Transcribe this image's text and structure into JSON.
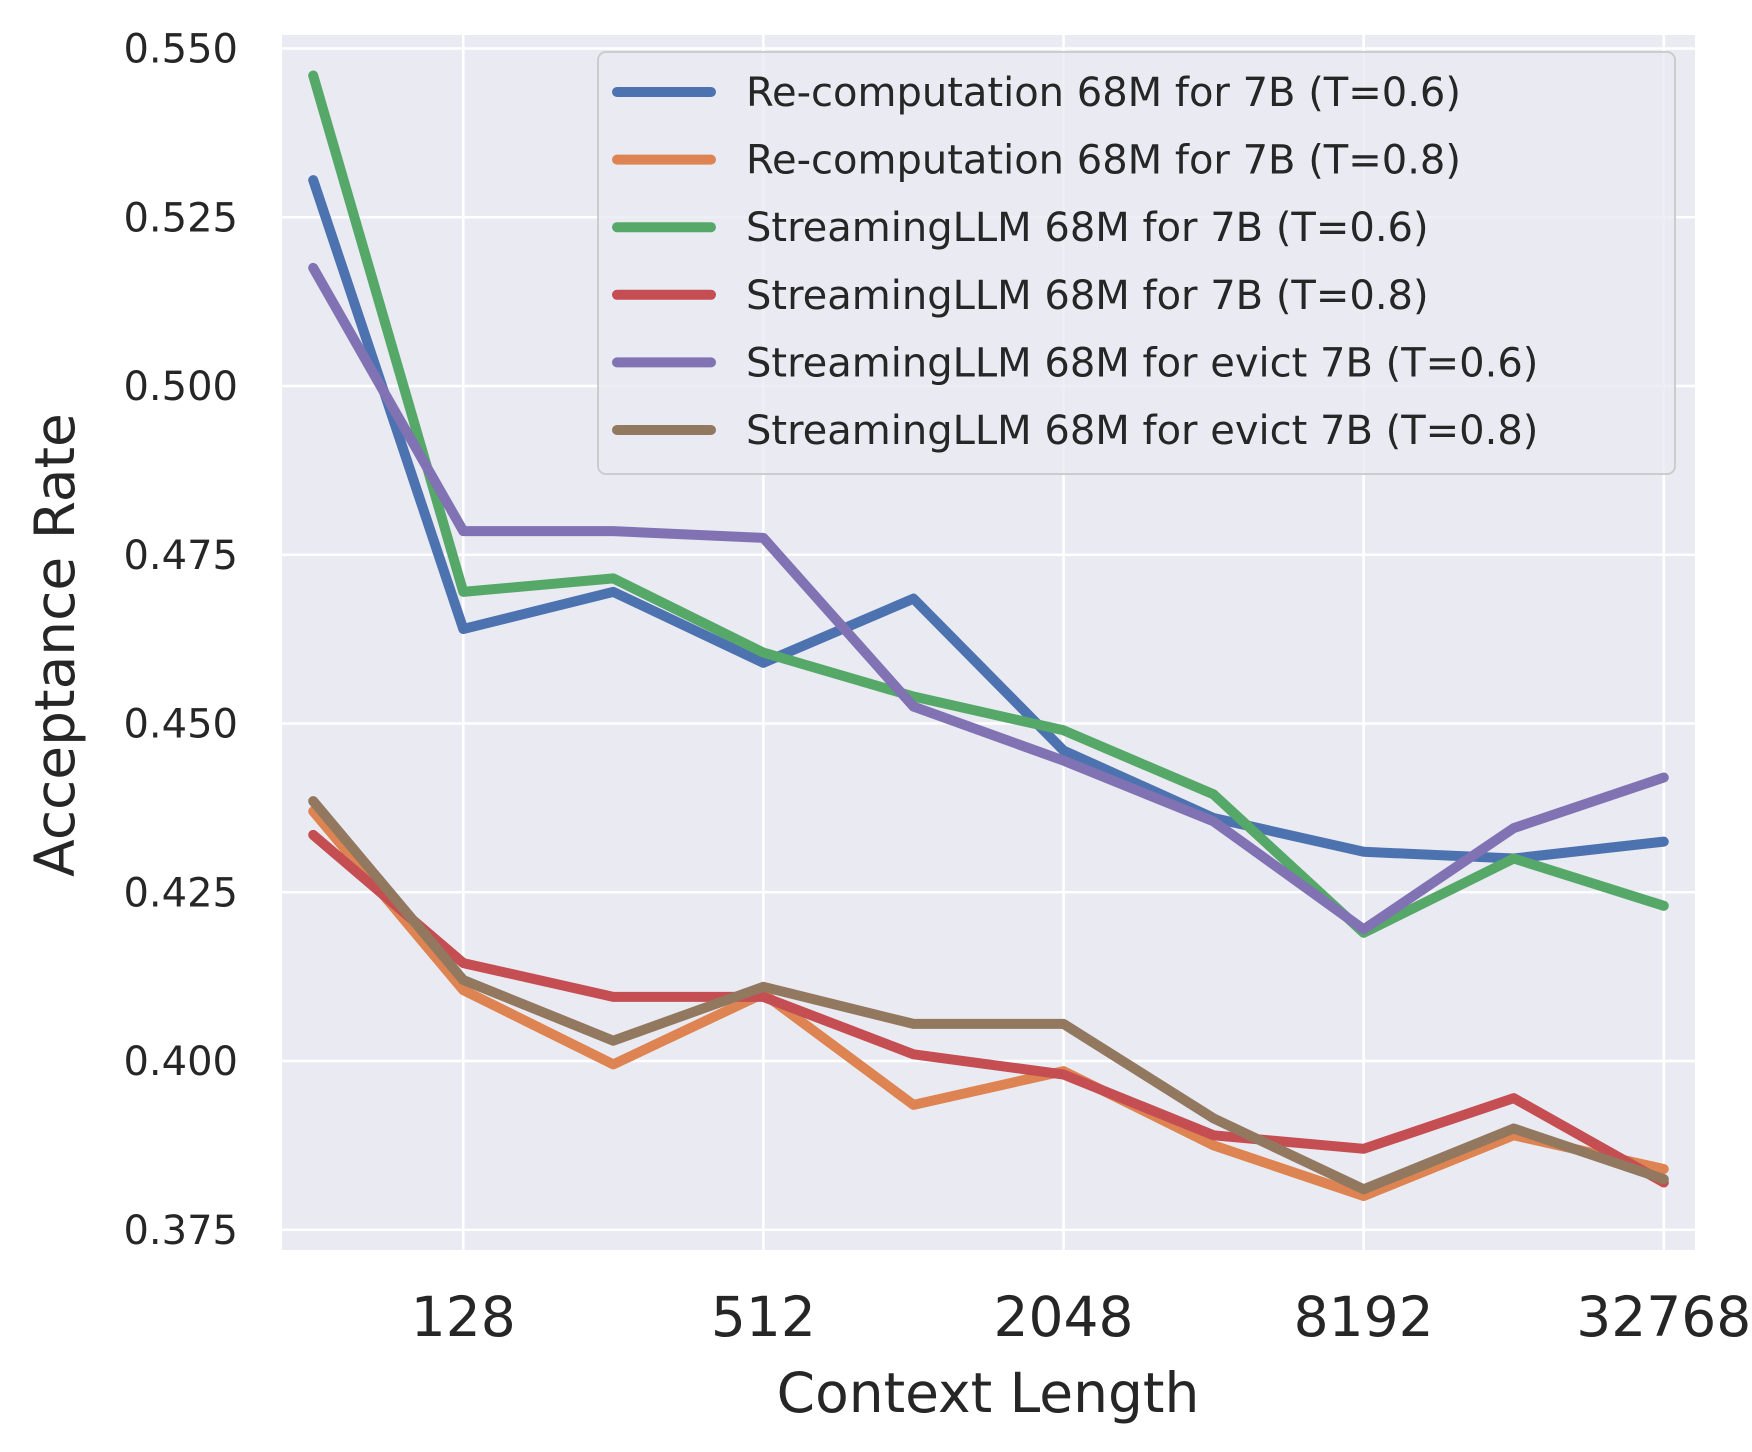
{
  "chart_data": {
    "type": "line",
    "xlabel": "Context Length",
    "ylabel": "Acceptance Rate",
    "x_scale": "log2",
    "x": [
      64,
      128,
      256,
      512,
      1024,
      2048,
      4096,
      8192,
      16384,
      32768
    ],
    "xticks": [
      128,
      512,
      2048,
      8192,
      32768
    ],
    "xtick_labels": [
      "128",
      "512",
      "2048",
      "8192",
      "32768"
    ],
    "yticks": [
      0.375,
      0.4,
      0.425,
      0.45,
      0.475,
      0.5,
      0.525,
      0.55
    ],
    "ytick_labels": [
      "0.375",
      "0.400",
      "0.425",
      "0.450",
      "0.475",
      "0.500",
      "0.525",
      "0.550"
    ],
    "ylim": [
      0.372,
      0.552
    ],
    "grid": true,
    "legend_position": "top-right",
    "series": [
      {
        "name": "Re-computation 68M for 7B (T=0.6)",
        "color": "#4c72b0",
        "values": [
          0.5305,
          0.464,
          0.4695,
          0.459,
          0.4685,
          0.446,
          0.436,
          0.431,
          0.43,
          0.4325
        ]
      },
      {
        "name": "Re-computation 68M for 7B (T=0.8)",
        "color": "#dd8452",
        "values": [
          0.437,
          0.4105,
          0.3995,
          0.41,
          0.3935,
          0.3985,
          0.3875,
          0.38,
          0.389,
          0.384
        ]
      },
      {
        "name": "StreamingLLM 68M for 7B (T=0.6)",
        "color": "#55a868",
        "values": [
          0.546,
          0.4695,
          0.4715,
          0.4605,
          0.454,
          0.449,
          0.4395,
          0.419,
          0.43,
          0.423
        ]
      },
      {
        "name": "StreamingLLM 68M for 7B (T=0.8)",
        "color": "#c44e52",
        "values": [
          0.4335,
          0.4145,
          0.4095,
          0.4095,
          0.401,
          0.398,
          0.389,
          0.387,
          0.3945,
          0.382
        ]
      },
      {
        "name": "StreamingLLM 68M for evict 7B (T=0.6)",
        "color": "#8172b3",
        "values": [
          0.5175,
          0.4785,
          0.4785,
          0.4775,
          0.4525,
          0.4445,
          0.4355,
          0.4195,
          0.4345,
          0.442
        ]
      },
      {
        "name": "StreamingLLM 68M for evict 7B (T=0.8)",
        "color": "#937860",
        "values": [
          0.4385,
          0.412,
          0.403,
          0.411,
          0.4055,
          0.4055,
          0.3915,
          0.381,
          0.39,
          0.3825
        ]
      }
    ]
  }
}
